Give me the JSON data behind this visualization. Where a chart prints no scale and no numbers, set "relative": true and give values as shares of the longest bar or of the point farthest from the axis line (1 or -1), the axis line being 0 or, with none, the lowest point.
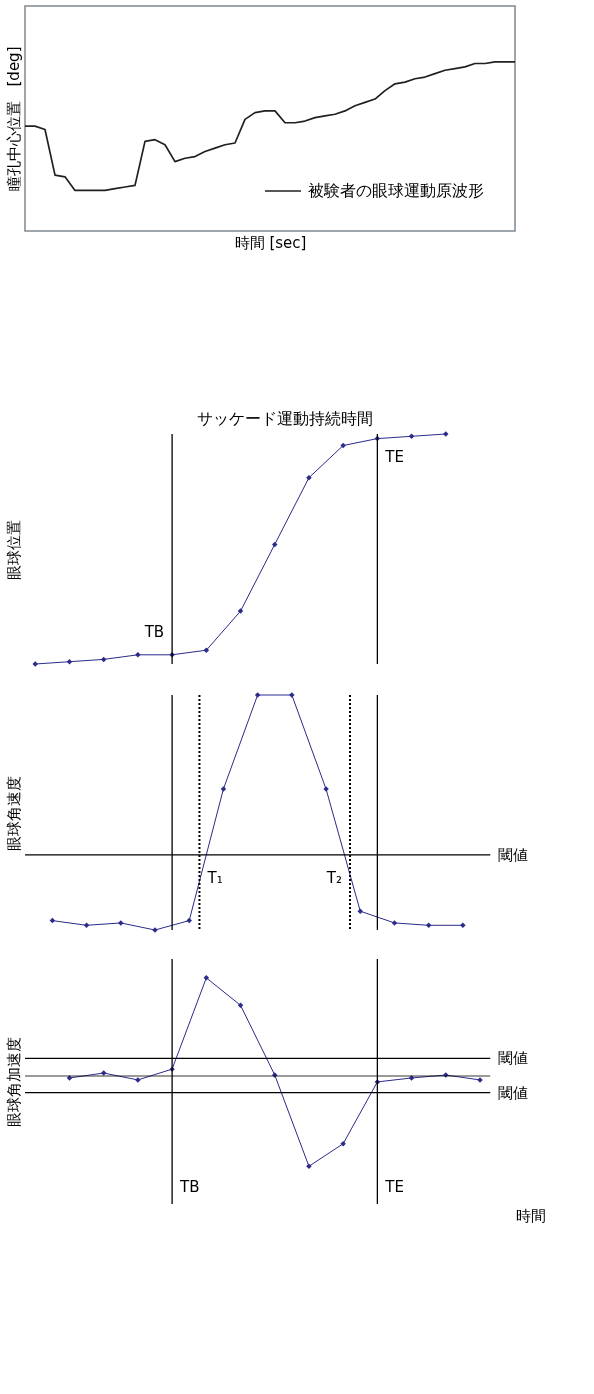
{
  "chart_data": [
    {
      "type": "line",
      "relative": true,
      "xlabel": "時間 [sec]",
      "ylabel": "瞳孔中心位置　[deg]",
      "legend": "bottom right",
      "grid": false,
      "marker": "none",
      "line_style": "solid",
      "categories": [
        null,
        null,
        null,
        null,
        null,
        null,
        null,
        null,
        null,
        null,
        null,
        null,
        null,
        null,
        null,
        null,
        null,
        null,
        null,
        null,
        null,
        null,
        null,
        null,
        null,
        null,
        null,
        null,
        null,
        null,
        null,
        null,
        null,
        null,
        null,
        null,
        null,
        null,
        null,
        null,
        null,
        null,
        null,
        null,
        null,
        null,
        null,
        null,
        null,
        null
      ],
      "series": [
        {
          "name": "被験者の眼球運動原波形",
          "color": "#231f20",
          "values": [
            0.62,
            0.62,
            0.6,
            0.33,
            0.32,
            0.24,
            0.24,
            0.24,
            0.24,
            0.25,
            0.26,
            0.27,
            0.53,
            0.54,
            0.51,
            0.41,
            0.43,
            0.44,
            0.47,
            0.49,
            0.51,
            0.52,
            0.66,
            0.7,
            0.71,
            0.71,
            0.64,
            0.64,
            0.65,
            0.67,
            0.68,
            0.69,
            0.71,
            0.74,
            0.76,
            0.78,
            0.83,
            0.87,
            0.88,
            0.9,
            0.91,
            0.93,
            0.95,
            0.96,
            0.97,
            0.99,
            0.99,
            1,
            1,
            1
          ]
        }
      ]
    },
    {
      "type": "line",
      "relative": true,
      "title": "サッケード運動持続時間",
      "ylabel": "眼球位置",
      "grid": false,
      "marker": "diamond",
      "line_style": "solid",
      "categories": [
        null,
        null,
        null,
        null,
        null,
        null,
        null,
        null,
        null,
        null,
        null,
        null,
        null
      ],
      "series": [
        {
          "color": "#2b2b8c",
          "values": [
            0,
            0.01,
            0.02,
            0.04,
            0.04,
            0.06,
            0.23,
            0.52,
            0.81,
            0.95,
            0.98,
            0.99,
            1
          ]
        }
      ],
      "annotations": [
        "TB",
        "TE"
      ]
    },
    {
      "type": "line",
      "relative": true,
      "ylabel": "眼球角速度",
      "grid": false,
      "marker": "diamond",
      "line_style": "solid",
      "categories": [
        null,
        null,
        null,
        null,
        null,
        null,
        null,
        null,
        null,
        null,
        null,
        null,
        null
      ],
      "series": [
        {
          "color": "#2b2b8c",
          "values": [
            0.04,
            0.02,
            0.03,
            0,
            0.04,
            0.6,
            1,
            1,
            0.6,
            0.08,
            0.03,
            0.02,
            0.02
          ]
        }
      ],
      "ref_lines": [
        {
          "axis": "y",
          "value": 0.32,
          "label": "閾値",
          "color": "#000000"
        }
      ],
      "annotations": [
        "T₁",
        "T₂"
      ]
    },
    {
      "type": "line",
      "relative": true,
      "ylabel": "眼球角加速度",
      "xlabel": "時間",
      "grid": false,
      "marker": "diamond",
      "line_style": "solid",
      "categories": [
        null,
        null,
        null,
        null,
        null,
        null,
        null,
        null,
        null,
        null,
        null,
        null,
        null
      ],
      "series": [
        {
          "color": "#2b2b8c",
          "values": [
            -0.02,
            0.03,
            -0.04,
            0.07,
            1,
            0.72,
            0.01,
            -0.92,
            -0.69,
            -0.06,
            -0.02,
            0.01,
            -0.04
          ]
        }
      ],
      "ref_lines": [
        {
          "axis": "y",
          "value": 0.18,
          "label": "閾値",
          "color": "#000000"
        },
        {
          "axis": "y",
          "value": -0.17,
          "label": "閾値",
          "color": "#000000"
        },
        {
          "axis": "y",
          "value": 0,
          "color": "#000000"
        }
      ],
      "annotations": [
        "TB",
        "TE"
      ]
    }
  ]
}
